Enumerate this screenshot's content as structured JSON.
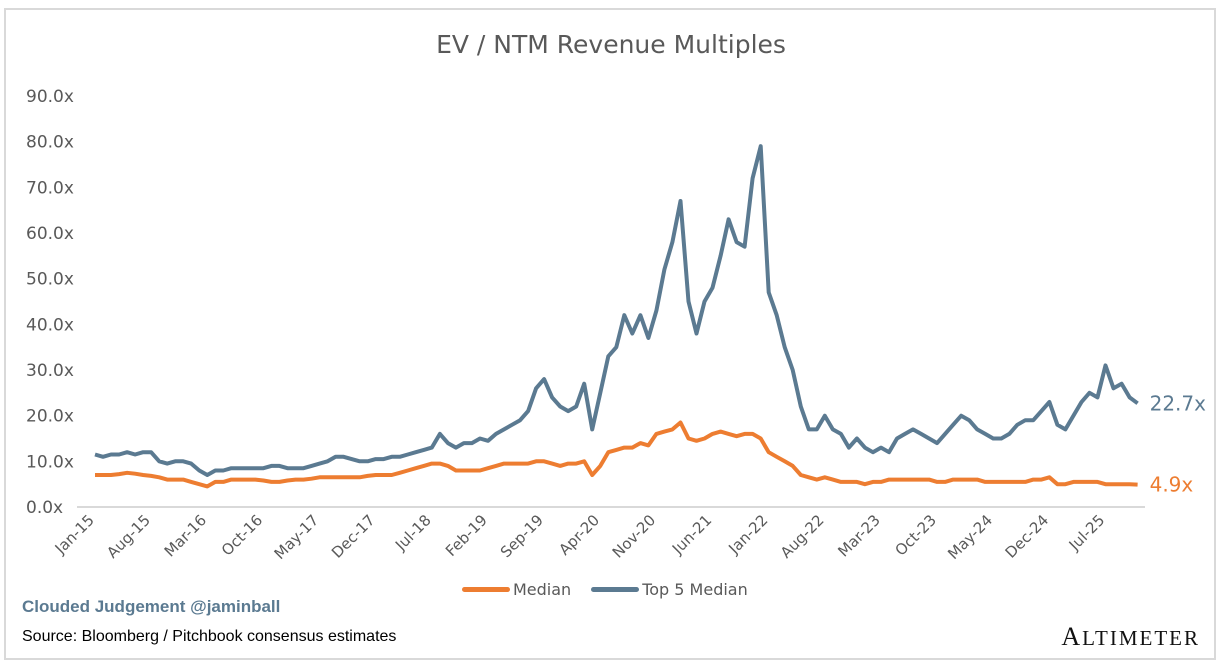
{
  "chart_data": {
    "type": "line",
    "title": "EV / NTM Revenue Multiples",
    "xlabel": "",
    "ylabel": "",
    "ylim": [
      0,
      90
    ],
    "y_ticks": [
      "0.0x",
      "10.0x",
      "20.0x",
      "30.0x",
      "40.0x",
      "50.0x",
      "60.0x",
      "70.0x",
      "80.0x",
      "90.0x"
    ],
    "x_start": "Jan-15",
    "x_frequency": "monthly",
    "x_ticks": [
      "Jan-15",
      "Aug-15",
      "Mar-16",
      "Oct-16",
      "May-17",
      "Dec-17",
      "Jul-18",
      "Feb-19",
      "Sep-19",
      "Apr-20",
      "Nov-20",
      "Jun-21",
      "Jan-22",
      "Aug-22",
      "Mar-23",
      "Oct-23",
      "May-24",
      "Dec-24",
      "Jul-25"
    ],
    "grid": false,
    "legend_position": "bottom",
    "series": [
      {
        "name": "Median",
        "color": "#ED7D31",
        "end_label": "4.9x",
        "values": [
          7,
          7,
          7,
          7.2,
          7.5,
          7.3,
          7,
          6.8,
          6.5,
          6,
          6,
          6,
          5.5,
          5,
          4.5,
          5.5,
          5.5,
          6,
          6,
          6,
          6,
          5.8,
          5.5,
          5.5,
          5.8,
          6,
          6,
          6.2,
          6.5,
          6.5,
          6.5,
          6.5,
          6.5,
          6.5,
          6.8,
          7,
          7,
          7,
          7.5,
          8,
          8.5,
          9,
          9.5,
          9.5,
          9,
          8,
          8,
          8,
          8,
          8.5,
          9,
          9.5,
          9.5,
          9.5,
          9.5,
          10,
          10,
          9.5,
          9,
          9.5,
          9.5,
          10,
          7,
          9,
          12,
          12.5,
          13,
          13,
          14,
          13.5,
          16,
          16.5,
          17,
          18.5,
          15,
          14.5,
          15,
          16,
          16.5,
          16,
          15.5,
          16,
          16,
          15,
          12,
          11,
          10,
          9,
          7,
          6.5,
          6,
          6.5,
          6,
          5.5,
          5.5,
          5.5,
          5,
          5.5,
          5.5,
          6,
          6,
          6,
          6,
          6,
          6,
          5.5,
          5.5,
          6,
          6,
          6,
          6,
          5.5,
          5.5,
          5.5,
          5.5,
          5.5,
          5.5,
          6,
          6,
          6.5,
          5,
          5,
          5.5,
          5.5,
          5.5,
          5.5,
          5,
          5,
          5,
          5,
          4.9
        ]
      },
      {
        "name": "Top 5 Median",
        "color": "#5B7A91",
        "end_label": "22.7x",
        "values": [
          11.5,
          11,
          11.5,
          11.5,
          12,
          11.5,
          12,
          12,
          10,
          9.5,
          10,
          10,
          9.5,
          8,
          7,
          8,
          8,
          8.5,
          8.5,
          8.5,
          8.5,
          8.5,
          9,
          9,
          8.5,
          8.5,
          8.5,
          9,
          9.5,
          10,
          11,
          11,
          10.5,
          10,
          10,
          10.5,
          10.5,
          11,
          11,
          11.5,
          12,
          12.5,
          13,
          16,
          14,
          13,
          14,
          14,
          15,
          14.5,
          16,
          17,
          18,
          19,
          21,
          26,
          28,
          24,
          22,
          21,
          22,
          27,
          17,
          25,
          33,
          35,
          42,
          38,
          42,
          37,
          43,
          52,
          58,
          67,
          45,
          38,
          45,
          48,
          55,
          63,
          58,
          57,
          72,
          79,
          47,
          42,
          35,
          30,
          22,
          17,
          17,
          20,
          17,
          16,
          13,
          15,
          13,
          12,
          13,
          12,
          15,
          16,
          17,
          16,
          15,
          14,
          16,
          18,
          20,
          19,
          17,
          16,
          15,
          15,
          16,
          18,
          19,
          19,
          21,
          23,
          18,
          17,
          20,
          23,
          25,
          24,
          31,
          26,
          27,
          24,
          22.7
        ]
      }
    ]
  },
  "footer": {
    "credit": "Clouded Judgement @jaminball",
    "source": "Source: Bloomberg / Pitchbook consensus estimates",
    "logo": "ALTIMETER"
  }
}
